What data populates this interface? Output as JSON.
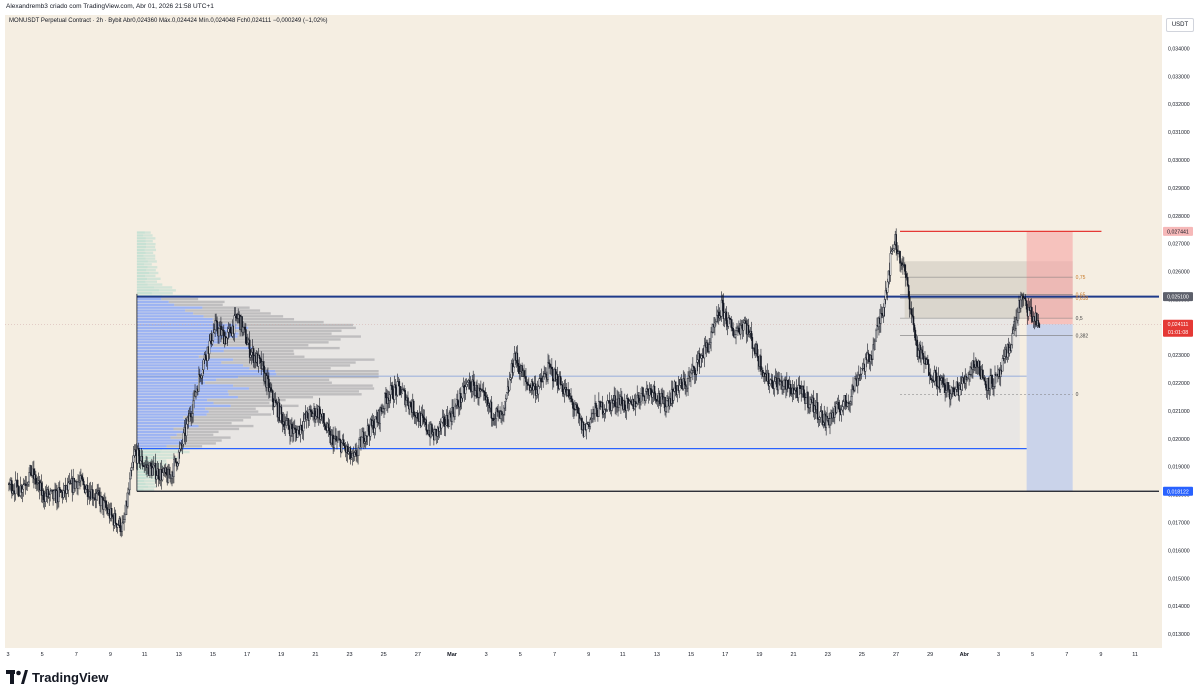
{
  "header": {
    "author_line": "Alexandremb3 criado com TradingView.com, Abr 01, 2026 21:58 UTC+1",
    "symbol_line": "MONUSDT Perpetual Contract · 2h · Bybit  Abr0,024360  Máx.0,024424  Mín.0,024048  Fch0,024111  −0,000249 (−1,02%)",
    "currency": "USDT"
  },
  "branding": {
    "logo_icon": "tradingview-logo-icon",
    "logo_text": "TradingView"
  },
  "colors": {
    "background": "#f5eee2",
    "candle": "#131722",
    "range_line": "#1e3a8a",
    "support_blue": "#2962ff",
    "red_level": "#e53935",
    "profile_blue": "#8fa9f5",
    "profile_gray": "#b7b2aa",
    "profile_teal": "#b7dccf",
    "stop_zone": "#f6a5a5",
    "target_zone": "#b8c8ee",
    "fib_zone": "#d6d0c6"
  },
  "chart_data": {
    "type": "candlestick",
    "title": "",
    "xlabel": "",
    "ylabel": "",
    "ylim": [
      0.0125,
      0.0352
    ],
    "grid": false,
    "y_ticks": [
      "0,034000",
      "0,033000",
      "0,032000",
      "0,031000",
      "0,030000",
      "0,029000",
      "0,028000",
      "0,027000",
      "0,026000",
      "0,025000",
      "0,024000",
      "0,023000",
      "0,022000",
      "0,021000",
      "0,020000",
      "0,019000",
      "0,018000",
      "0,017000",
      "0,016000",
      "0,015000",
      "0,014000",
      "0,013000"
    ],
    "x_ticks": [
      "3",
      "5",
      "7",
      "9",
      "11",
      "13",
      "15",
      "17",
      "19",
      "21",
      "23",
      "25",
      "27",
      "Mar",
      "3",
      "5",
      "7",
      "9",
      "11",
      "13",
      "15",
      "17",
      "19",
      "21",
      "23",
      "25",
      "27",
      "29",
      "Abr",
      "3",
      "5",
      "7",
      "9",
      "11"
    ],
    "close_path": [
      [
        3,
        0.0184
      ],
      [
        4,
        0.0182
      ],
      [
        5,
        0.0188
      ],
      [
        6,
        0.018
      ],
      [
        7,
        0.0179
      ],
      [
        8,
        0.0181
      ],
      [
        9,
        0.0185
      ],
      [
        10,
        0.0182
      ],
      [
        11,
        0.0178
      ],
      [
        12,
        0.0172
      ],
      [
        13,
        0.0168
      ],
      [
        14,
        0.0195
      ],
      [
        15,
        0.019
      ],
      [
        16,
        0.0188
      ],
      [
        17,
        0.0186
      ],
      [
        18,
        0.0196
      ],
      [
        19,
        0.0212
      ],
      [
        20,
        0.0228
      ],
      [
        21,
        0.024
      ],
      [
        22,
        0.0236
      ],
      [
        23,
        0.0244
      ],
      [
        24,
        0.0232
      ],
      [
        25,
        0.0226
      ],
      [
        26,
        0.0214
      ],
      [
        27,
        0.0206
      ],
      [
        28,
        0.0202
      ],
      [
        29,
        0.0208
      ],
      [
        30,
        0.021
      ],
      [
        31,
        0.02
      ],
      [
        32,
        0.0198
      ],
      [
        33,
        0.0192
      ],
      [
        34,
        0.0202
      ],
      [
        35,
        0.0206
      ],
      [
        36,
        0.0216
      ],
      [
        37,
        0.0218
      ],
      [
        38,
        0.0212
      ],
      [
        39,
        0.0206
      ],
      [
        40,
        0.0201
      ],
      [
        41,
        0.0206
      ],
      [
        42,
        0.0212
      ],
      [
        43,
        0.022
      ],
      [
        44,
        0.0216
      ],
      [
        45,
        0.021
      ],
      [
        46,
        0.0207
      ],
      [
        47,
        0.023
      ],
      [
        48,
        0.022
      ],
      [
        49,
        0.0218
      ],
      [
        50,
        0.0225
      ],
      [
        51,
        0.022
      ],
      [
        52,
        0.0213
      ],
      [
        53,
        0.0203
      ],
      [
        54,
        0.021
      ],
      [
        55,
        0.0212
      ],
      [
        56,
        0.0214
      ],
      [
        57,
        0.0211
      ],
      [
        58,
        0.0216
      ],
      [
        59,
        0.0218
      ],
      [
        60,
        0.0212
      ],
      [
        61,
        0.0218
      ],
      [
        62,
        0.022
      ],
      [
        63,
        0.0228
      ],
      [
        64,
        0.0235
      ],
      [
        65,
        0.0247
      ],
      [
        66,
        0.0238
      ],
      [
        67,
        0.0242
      ],
      [
        68,
        0.0231
      ],
      [
        69,
        0.0221
      ],
      [
        70,
        0.022
      ],
      [
        71,
        0.0218
      ],
      [
        72,
        0.0216
      ],
      [
        73,
        0.0212
      ],
      [
        74,
        0.0206
      ],
      [
        75,
        0.021
      ],
      [
        76,
        0.0214
      ],
      [
        77,
        0.0224
      ],
      [
        78,
        0.023
      ],
      [
        79,
        0.0247
      ],
      [
        80,
        0.0272
      ],
      [
        81,
        0.0258
      ],
      [
        82,
        0.0232
      ],
      [
        83,
        0.0225
      ],
      [
        84,
        0.022
      ],
      [
        85,
        0.0216
      ],
      [
        86,
        0.022
      ],
      [
        87,
        0.0228
      ],
      [
        88,
        0.022
      ],
      [
        89,
        0.0221
      ],
      [
        90,
        0.0233
      ],
      [
        91,
        0.025
      ],
      [
        92,
        0.0244
      ],
      [
        92.6,
        0.02411
      ]
    ],
    "x_range": [
      3,
      103
    ],
    "levels": [
      {
        "name": "range-high",
        "value": 0.0251,
        "label": "0,025100",
        "from_x": 14.2,
        "to_x": 103
      },
      {
        "name": "range-low",
        "value": 0.01812,
        "label": "0,018122",
        "from_x": 14.2,
        "to_x": 103
      },
      {
        "name": "support",
        "value": 0.01965,
        "from_x": 14.2,
        "to_x": 91.5
      },
      {
        "name": "mid-line",
        "value": 0.02225,
        "from_x": 14.2,
        "to_x": 91.5
      },
      {
        "name": "red-high",
        "value": 0.02744,
        "label": "0,027441",
        "from_x": 80.5,
        "to_x": 98
      },
      {
        "name": "last-price",
        "value": 0.02411,
        "label": "0,024111",
        "countdown": "01:01:08"
      }
    ],
    "fib": {
      "levels": [
        {
          "label": "0,75",
          "value": 0.0258
        },
        {
          "label": "0,65",
          "value": 0.02518
        },
        {
          "label": "0,618",
          "value": 0.02505
        },
        {
          "label": "0,5",
          "value": 0.02433
        },
        {
          "label": "0,382",
          "value": 0.0237
        },
        {
          "label": "0",
          "value": 0.0216
        }
      ],
      "zone": [
        0.02434,
        0.02637
      ],
      "from_x": 80.5,
      "to_x": 95.5
    },
    "position": {
      "entry": 0.02411,
      "stop": 0.02744,
      "target": 0.01812,
      "from_x": 91.5,
      "to_x": 95.5
    },
    "volume_profile": {
      "price_min": 0.01812,
      "price_max": 0.02744,
      "start_x": 14.2,
      "width_x": 20,
      "value_area": [
        0.01965,
        0.0251
      ]
    }
  }
}
